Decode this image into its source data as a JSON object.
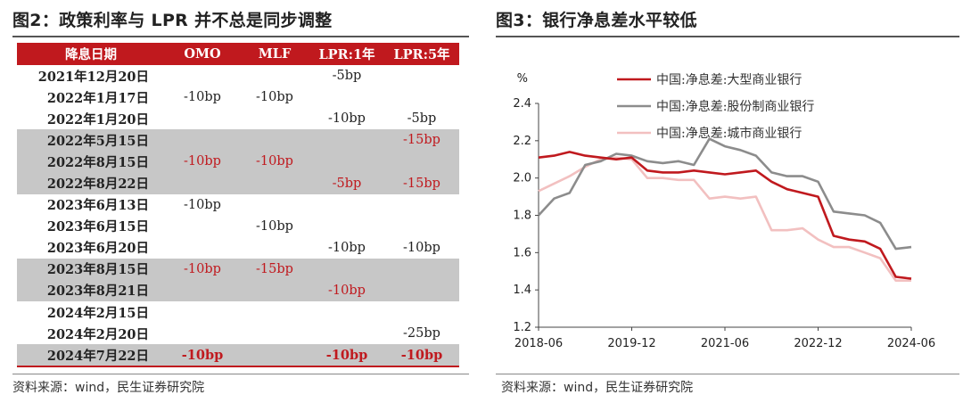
{
  "left": {
    "title": "图2：政策利率与 LPR 并不总是同步调整",
    "source": "资料来源：wind，民生证券研究院",
    "colors": {
      "header_bg": "#c0191e",
      "shade_bg": "#c7c7c7",
      "highlight": "#c0191e"
    },
    "table": {
      "headers": [
        "降息日期",
        "OMO",
        "MLF",
        "LPR:1年",
        "LPR:5年"
      ],
      "rows": [
        {
          "date": "2021年12月20日",
          "omo": "",
          "mlf": "",
          "lpr1": "-5bp",
          "lpr5": ""
        },
        {
          "date": "2022年1月17日",
          "omo": "-10bp",
          "mlf": "-10bp",
          "lpr1": "",
          "lpr5": ""
        },
        {
          "date": "2022年1月20日",
          "omo": "",
          "mlf": "",
          "lpr1": "-10bp",
          "lpr5": "-5bp"
        },
        {
          "date": "2022年5月15日",
          "omo": "",
          "mlf": "",
          "lpr1": "",
          "lpr5": "-15bp"
        },
        {
          "date": "2022年8月15日",
          "omo": "-10bp",
          "mlf": "-10bp",
          "lpr1": "",
          "lpr5": ""
        },
        {
          "date": "2022年8月22日",
          "omo": "",
          "mlf": "",
          "lpr1": "-5bp",
          "lpr5": "-15bp"
        },
        {
          "date": "2023年6月13日",
          "omo": "-10bp",
          "mlf": "",
          "lpr1": "",
          "lpr5": ""
        },
        {
          "date": "2023年6月15日",
          "omo": "",
          "mlf": "-10bp",
          "lpr1": "",
          "lpr5": ""
        },
        {
          "date": "2023年6月20日",
          "omo": "",
          "mlf": "",
          "lpr1": "-10bp",
          "lpr5": "-10bp"
        },
        {
          "date": "2023年8月15日",
          "omo": "-10bp",
          "mlf": "-15bp",
          "lpr1": "",
          "lpr5": ""
        },
        {
          "date": "2023年8月21日",
          "omo": "",
          "mlf": "",
          "lpr1": "-10bp",
          "lpr5": ""
        },
        {
          "date": "2024年2月15日",
          "omo": "",
          "mlf": "",
          "lpr1": "",
          "lpr5": ""
        },
        {
          "date": "2024年2月20日",
          "omo": "",
          "mlf": "",
          "lpr1": "",
          "lpr5": "-25bp"
        },
        {
          "date": "2024年7月22日",
          "omo": "-10bp",
          "mlf": "",
          "lpr1": "-10bp",
          "lpr5": "-10bp"
        }
      ]
    }
  },
  "right": {
    "title": "图3：银行净息差水平较低",
    "source": "资料来源：wind，民生证券研究院"
  },
  "chart_data": {
    "type": "line",
    "title": "图3：银行净息差水平较低",
    "ylabel": "%",
    "xlabel": "",
    "ylim": [
      1.2,
      2.4
    ],
    "yticks": [
      "1.2",
      "1.4",
      "1.6",
      "1.8",
      "2.0",
      "2.2",
      "2.4"
    ],
    "x": [
      "2018-06",
      "2018-09",
      "2018-12",
      "2019-03",
      "2019-06",
      "2019-09",
      "2019-12",
      "2020-03",
      "2020-06",
      "2020-09",
      "2020-12",
      "2021-03",
      "2021-06",
      "2021-09",
      "2021-12",
      "2022-03",
      "2022-06",
      "2022-09",
      "2022-12",
      "2023-03",
      "2023-06",
      "2023-09",
      "2023-12",
      "2024-03",
      "2024-06"
    ],
    "xticks": [
      "2018-06",
      "2019-12",
      "2021-06",
      "2022-12",
      "2024-06"
    ],
    "legend_position": "top-right",
    "grid": false,
    "series": [
      {
        "name": "中国:净息差:大型商业银行",
        "color": "#c0191e",
        "values": [
          2.11,
          2.12,
          2.14,
          2.12,
          2.11,
          2.1,
          2.11,
          2.04,
          2.03,
          2.03,
          2.04,
          2.03,
          2.02,
          2.03,
          2.04,
          1.98,
          1.94,
          1.92,
          1.9,
          1.69,
          1.67,
          1.66,
          1.62,
          1.47,
          1.46
        ]
      },
      {
        "name": "中国:净息差:股份制商业银行",
        "color": "#8c8c8c",
        "values": [
          1.8,
          1.89,
          1.92,
          2.07,
          2.09,
          2.13,
          2.12,
          2.09,
          2.08,
          2.09,
          2.07,
          2.21,
          2.17,
          2.15,
          2.12,
          2.03,
          2.01,
          2.01,
          1.98,
          1.82,
          1.81,
          1.8,
          1.76,
          1.62,
          1.63
        ]
      },
      {
        "name": "中国:净息差:城市商业银行",
        "color": "#f2c0c0",
        "values": [
          1.93,
          1.97,
          2.01,
          2.06,
          2.1,
          2.11,
          2.1,
          2.0,
          2.0,
          1.99,
          1.99,
          1.89,
          1.9,
          1.89,
          1.9,
          1.72,
          1.72,
          1.73,
          1.67,
          1.63,
          1.63,
          1.6,
          1.57,
          1.45,
          1.45
        ]
      }
    ]
  }
}
